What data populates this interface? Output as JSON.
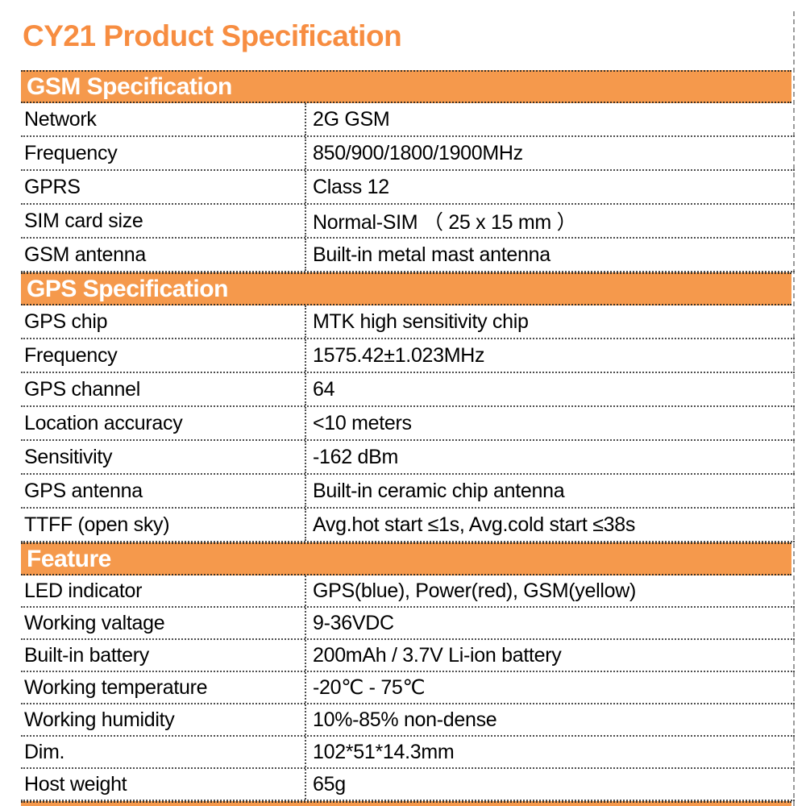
{
  "title": "CY21 Product Specification",
  "colors": {
    "accent_orange": "#f5994c",
    "title_orange": "#f78d41",
    "header_text": "#ffffff",
    "body_text": "#000000",
    "border_dotted": "#4d4d4d",
    "margin_guide": "#9b9b9b"
  },
  "sections": [
    {
      "title": "GSM Specification",
      "rows": [
        {
          "label": "Network",
          "value": "2G GSM"
        },
        {
          "label": "Frequency",
          "value": "850/900/1800/1900MHz"
        },
        {
          "label": "GPRS",
          "value": "Class 12"
        },
        {
          "label": "SIM card size",
          "value": "Normal-SIM （ 25 x 15 mm ）"
        },
        {
          "label": "GSM antenna",
          "value": "Built-in metal mast antenna"
        }
      ]
    },
    {
      "title": "GPS Specification",
      "rows": [
        {
          "label": "GPS chip",
          "value": "MTK high sensitivity chip"
        },
        {
          "label": "Frequency",
          "value": "1575.42±1.023MHz"
        },
        {
          "label": "GPS channel",
          "value": "64"
        },
        {
          "label": "Location accuracy",
          "value": "<10 meters"
        },
        {
          "label": "Sensitivity",
          "value": "-162 dBm"
        },
        {
          "label": "GPS antenna",
          "value": "Built-in ceramic chip antenna"
        },
        {
          "label": "TTFF (open sky)",
          "value": "Avg.hot start ≤1s, Avg.cold start ≤38s"
        }
      ]
    },
    {
      "title": "Feature",
      "rows": [
        {
          "label": "LED indicator",
          "value": "GPS(blue), Power(red), GSM(yellow)"
        },
        {
          "label": "Working valtage",
          "value": "9-36VDC"
        },
        {
          "label": "Built-in battery",
          "value": "200mAh / 3.7V Li-ion battery"
        },
        {
          "label": "Working temperature",
          "value": "-20℃ - 75℃"
        },
        {
          "label": "Working humidity",
          "value": "10%-85% non-dense"
        },
        {
          "label": "Dim.",
          "value": "102*51*14.3mm"
        },
        {
          "label": "Host weight",
          "value": "65g"
        }
      ]
    }
  ]
}
